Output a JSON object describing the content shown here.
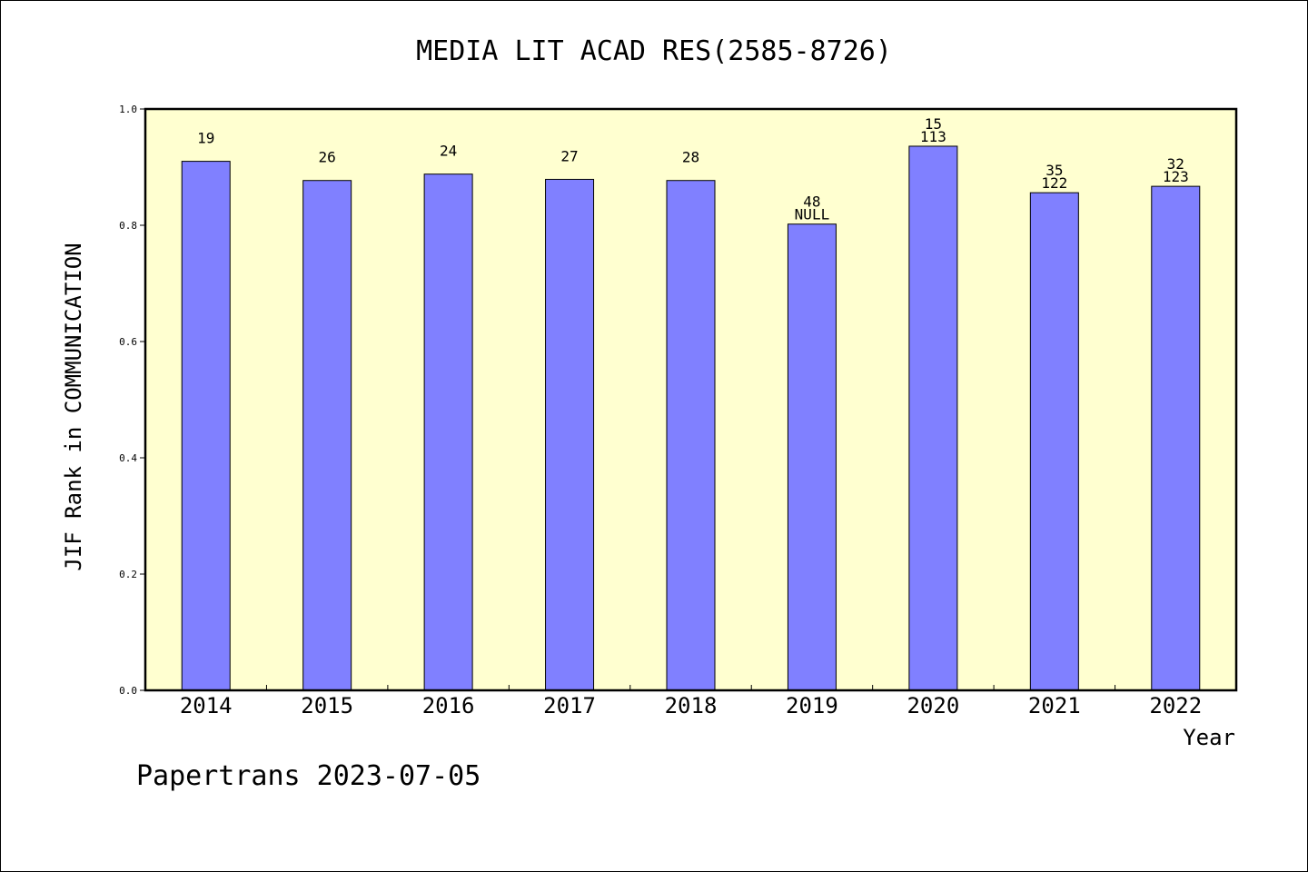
{
  "chart_data": {
    "type": "bar",
    "title": "MEDIA LIT ACAD RES(2585-8726)",
    "xlabel": "Year",
    "ylabel": "JIF Rank in COMMUNICATION",
    "ylim": [
      0,
      1.0
    ],
    "yticks": [
      "0.0",
      "0.2",
      "0.4",
      "0.6",
      "0.8",
      "1.0"
    ],
    "categories": [
      "2014",
      "2015",
      "2016",
      "2017",
      "2018",
      "2019",
      "2020",
      "2021",
      "2022"
    ],
    "values": [
      0.91,
      0.877,
      0.888,
      0.879,
      0.877,
      0.802,
      0.936,
      0.856,
      0.867
    ],
    "labels_top": [
      "19",
      "26",
      "24",
      "27",
      "28",
      "48",
      "15",
      "35",
      "32"
    ],
    "labels_bottom": [
      "",
      "",
      "",
      "",
      "",
      "NULL",
      "113",
      "122",
      "123"
    ],
    "grid": false,
    "colors": {
      "bar": "#8080ff",
      "plot_bg": "#ffffd0"
    }
  },
  "footer": "Papertrans 2023-07-05"
}
